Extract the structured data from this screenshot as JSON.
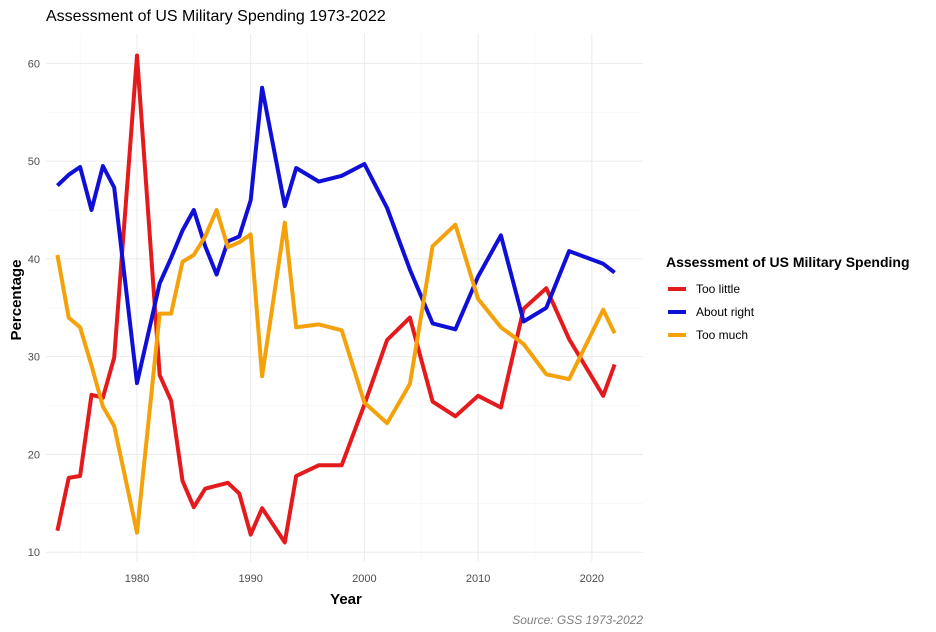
{
  "chart_data": {
    "type": "line",
    "title": "Assessment of US Military Spending 1973-2022",
    "xlabel": "Year",
    "ylabel": "Percentage",
    "caption": "Source: GSS 1973-2022",
    "xlim": [
      1972,
      2024.5
    ],
    "ylim": [
      9,
      63
    ],
    "x_ticks": [
      1980,
      1990,
      2000,
      2010,
      2020
    ],
    "y_ticks": [
      10,
      20,
      30,
      40,
      50,
      60
    ],
    "grid": true,
    "legend": {
      "title": "Assessment of US Military Spending",
      "position": "right"
    },
    "x": [
      1973,
      1974,
      1975,
      1976,
      1977,
      1978,
      1980,
      1982,
      1983,
      1984,
      1985,
      1986,
      1987,
      1988,
      1989,
      1990,
      1991,
      1993,
      1994,
      1996,
      1998,
      2000,
      2002,
      2004,
      2006,
      2008,
      2010,
      2012,
      2014,
      2016,
      2018,
      2021,
      2022
    ],
    "series": [
      {
        "name": "Too little",
        "color": "#e41a1c",
        "values": [
          12.2,
          17.6,
          17.8,
          26.1,
          25.8,
          29.9,
          60.8,
          28.1,
          25.5,
          17.3,
          14.6,
          16.5,
          16.8,
          17.1,
          16.0,
          11.8,
          14.5,
          11.0,
          17.8,
          18.9,
          18.9,
          25.1,
          31.7,
          34.0,
          25.4,
          23.9,
          26.0,
          24.8,
          34.9,
          37.0,
          31.8,
          26.0,
          29.2
        ]
      },
      {
        "name": "About right",
        "color": "#0f0fd8",
        "values": [
          47.5,
          48.6,
          49.4,
          45.0,
          49.5,
          47.3,
          27.3,
          37.5,
          40.1,
          42.9,
          45.0,
          41.3,
          38.4,
          41.8,
          42.3,
          46.0,
          57.5,
          45.4,
          49.3,
          47.9,
          48.5,
          49.7,
          45.2,
          38.9,
          33.4,
          32.8,
          38.2,
          42.4,
          33.6,
          35.0,
          40.8,
          39.5,
          38.6
        ]
      },
      {
        "name": "Too much",
        "color": "#f5a20a",
        "values": [
          40.4,
          34.0,
          33.0,
          29.1,
          24.9,
          22.9,
          12.0,
          34.4,
          34.4,
          39.7,
          40.4,
          42.3,
          45.0,
          41.2,
          41.7,
          42.5,
          28.0,
          43.7,
          33.0,
          33.3,
          32.7,
          25.3,
          23.2,
          27.2,
          41.3,
          43.5,
          35.9,
          33.0,
          31.3,
          28.2,
          27.7,
          34.8,
          32.4
        ]
      }
    ]
  }
}
